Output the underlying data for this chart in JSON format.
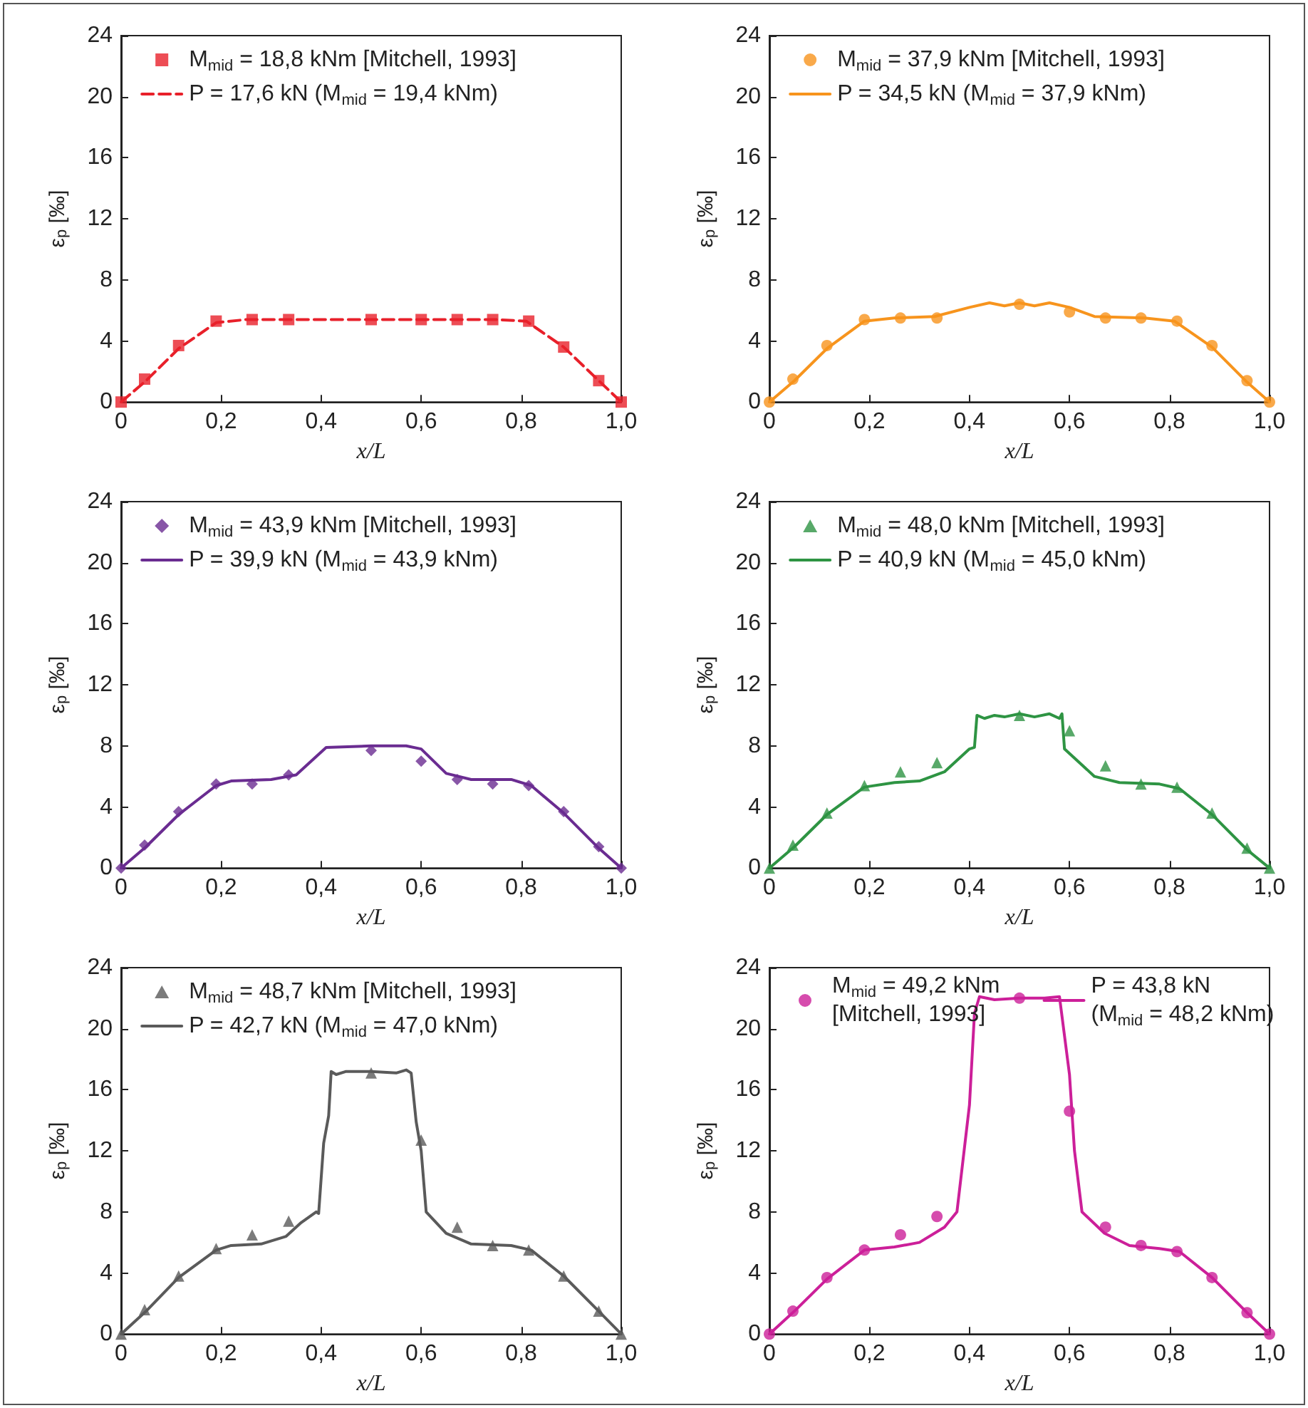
{
  "chart_data": [
    {
      "type": "line",
      "xlabel": "x/L",
      "ylabel": "ε$_{p}$ [‰]",
      "xlim": [
        0,
        1
      ],
      "xticks": [
        {
          "value": 0,
          "label": "0"
        },
        {
          "value": 0.2,
          "label": "0,2"
        },
        {
          "value": 0.4,
          "label": "0,4"
        },
        {
          "value": 0.6,
          "label": "0,6"
        },
        {
          "value": 0.8,
          "label": "0,8"
        },
        {
          "value": 1,
          "label": "1,0"
        }
      ],
      "ylim": [
        0,
        24
      ],
      "yticks": [
        0,
        4,
        8,
        12,
        16,
        20,
        24
      ],
      "grid": false,
      "legend": "top",
      "series": [
        {
          "name": "M$_{mid}$ = 18,8 kNm [Mitchell, 1993]",
          "color": "#e8202a",
          "type": "scatter",
          "marker": "square",
          "x": [
            0,
            0.047,
            0.115,
            0.19,
            0.262,
            0.335,
            0.5,
            0.6,
            0.672,
            0.743,
            0.815,
            0.885,
            0.955,
            1
          ],
          "values": [
            0,
            1.5,
            3.7,
            5.3,
            5.4,
            5.4,
            5.4,
            5.4,
            5.4,
            5.4,
            5.3,
            3.6,
            1.4,
            0
          ]
        },
        {
          "name": "P = 17,6 kN (M$_{mid}$ = 19,4 kNm)",
          "color": "#e8202a",
          "type": "line",
          "marker": "none",
          "line_style": "dashed",
          "x": [
            0,
            0.05,
            0.115,
            0.19,
            0.25,
            0.5,
            0.75,
            0.81,
            0.885,
            0.955,
            1
          ],
          "values": [
            0,
            1.4,
            3.5,
            5.2,
            5.4,
            5.4,
            5.4,
            5.3,
            3.6,
            1.4,
            0
          ]
        }
      ]
    },
    {
      "type": "line",
      "xlabel": "x/L",
      "ylabel": "ε$_{p}$ [‰]",
      "xlim": [
        0,
        1
      ],
      "xticks": [
        {
          "value": 0,
          "label": "0"
        },
        {
          "value": 0.2,
          "label": "0,2"
        },
        {
          "value": 0.4,
          "label": "0,4"
        },
        {
          "value": 0.6,
          "label": "0,6"
        },
        {
          "value": 0.8,
          "label": "0,8"
        },
        {
          "value": 1,
          "label": "1,0"
        }
      ],
      "ylim": [
        0,
        24
      ],
      "yticks": [
        0,
        4,
        8,
        12,
        16,
        20,
        24
      ],
      "grid": false,
      "legend": "top",
      "series": [
        {
          "name": "M$_{mid}$ = 37,9 kNm [Mitchell, 1993]",
          "color": "#f7941d",
          "type": "scatter",
          "marker": "circle",
          "x": [
            0,
            0.047,
            0.115,
            0.19,
            0.262,
            0.335,
            0.5,
            0.6,
            0.672,
            0.743,
            0.815,
            0.885,
            0.955,
            1
          ],
          "values": [
            0,
            1.5,
            3.7,
            5.4,
            5.5,
            5.5,
            6.4,
            5.9,
            5.5,
            5.5,
            5.3,
            3.7,
            1.4,
            0
          ]
        },
        {
          "name": "P = 34,5 kN (M$_{mid}$ = 37,9 kNm)",
          "color": "#f7941d",
          "type": "line",
          "marker": "none",
          "line_style": "solid",
          "x": [
            0,
            0.05,
            0.115,
            0.19,
            0.25,
            0.33,
            0.4,
            0.44,
            0.47,
            0.5,
            0.53,
            0.56,
            0.6,
            0.65,
            0.75,
            0.81,
            0.885,
            0.955,
            1
          ],
          "values": [
            0,
            1.4,
            3.5,
            5.3,
            5.5,
            5.6,
            6.2,
            6.5,
            6.3,
            6.5,
            6.3,
            6.5,
            6.2,
            5.6,
            5.5,
            5.3,
            3.6,
            1.3,
            0
          ]
        }
      ]
    },
    {
      "type": "line",
      "xlabel": "x/L",
      "ylabel": "ε$_{p}$ [‰]",
      "xlim": [
        0,
        1
      ],
      "xticks": [
        {
          "value": 0,
          "label": "0"
        },
        {
          "value": 0.2,
          "label": "0,2"
        },
        {
          "value": 0.4,
          "label": "0,4"
        },
        {
          "value": 0.6,
          "label": "0,6"
        },
        {
          "value": 0.8,
          "label": "0,8"
        },
        {
          "value": 1,
          "label": "1,0"
        }
      ],
      "ylim": [
        0,
        24
      ],
      "yticks": [
        0,
        4,
        8,
        12,
        16,
        20,
        24
      ],
      "grid": false,
      "legend": "top",
      "series": [
        {
          "name": "M$_{mid}$ = 43,9 kNm [Mitchell, 1993]",
          "color": "#6a2c91",
          "type": "scatter",
          "marker": "diamond",
          "x": [
            0,
            0.047,
            0.115,
            0.19,
            0.262,
            0.335,
            0.5,
            0.6,
            0.672,
            0.743,
            0.815,
            0.885,
            0.955,
            1
          ],
          "values": [
            0,
            1.5,
            3.7,
            5.5,
            5.5,
            6.1,
            7.7,
            7.0,
            5.8,
            5.5,
            5.4,
            3.7,
            1.4,
            0
          ]
        },
        {
          "name": "P = 39,9 kN (M$_{mid}$ = 43,9 kNm)",
          "color": "#6a2c91",
          "type": "line",
          "marker": "none",
          "line_style": "solid",
          "x": [
            0,
            0.05,
            0.115,
            0.19,
            0.22,
            0.3,
            0.35,
            0.41,
            0.5,
            0.57,
            0.6,
            0.65,
            0.7,
            0.78,
            0.82,
            0.885,
            0.955,
            1
          ],
          "values": [
            0,
            1.4,
            3.5,
            5.4,
            5.7,
            5.8,
            6.1,
            7.9,
            8.0,
            8.0,
            7.8,
            6.2,
            5.8,
            5.8,
            5.4,
            3.6,
            1.3,
            0
          ]
        }
      ]
    },
    {
      "type": "line",
      "xlabel": "x/L",
      "ylabel": "ε$_{p}$ [‰]",
      "xlim": [
        0,
        1
      ],
      "xticks": [
        {
          "value": 0,
          "label": "0"
        },
        {
          "value": 0.2,
          "label": "0,2"
        },
        {
          "value": 0.4,
          "label": "0,4"
        },
        {
          "value": 0.6,
          "label": "0,6"
        },
        {
          "value": 0.8,
          "label": "0,8"
        },
        {
          "value": 1,
          "label": "1,0"
        }
      ],
      "ylim": [
        0,
        24
      ],
      "yticks": [
        0,
        4,
        8,
        12,
        16,
        20,
        24
      ],
      "grid": false,
      "legend": "top",
      "series": [
        {
          "name": "M$_{mid}$ = 48,0 kNm [Mitchell, 1993]",
          "color": "#2e9443",
          "type": "scatter",
          "marker": "triangle",
          "x": [
            0,
            0.047,
            0.115,
            0.19,
            0.262,
            0.335,
            0.5,
            0.6,
            0.672,
            0.743,
            0.815,
            0.885,
            0.955,
            1
          ],
          "values": [
            0,
            1.5,
            3.6,
            5.4,
            6.3,
            6.9,
            10.0,
            9.0,
            6.7,
            5.5,
            5.3,
            3.6,
            1.3,
            0
          ]
        },
        {
          "name": "P = 40,9 kN (M$_{mid}$ = 45,0 kNm)",
          "color": "#2e9443",
          "type": "line",
          "marker": "none",
          "line_style": "solid",
          "x": [
            0,
            0.05,
            0.115,
            0.19,
            0.25,
            0.3,
            0.35,
            0.4,
            0.41,
            0.415,
            0.43,
            0.45,
            0.47,
            0.5,
            0.53,
            0.56,
            0.58,
            0.585,
            0.59,
            0.65,
            0.7,
            0.78,
            0.82,
            0.885,
            0.955,
            1
          ],
          "values": [
            0,
            1.4,
            3.5,
            5.3,
            5.6,
            5.7,
            6.3,
            7.8,
            7.9,
            10.0,
            9.8,
            10.0,
            9.9,
            10.1,
            9.9,
            10.1,
            9.8,
            10.1,
            7.8,
            6.0,
            5.6,
            5.5,
            5.2,
            3.5,
            1.2,
            0
          ]
        }
      ]
    },
    {
      "type": "line",
      "xlabel": "x/L",
      "ylabel": "ε$_{p}$ [‰]",
      "xlim": [
        0,
        1
      ],
      "xticks": [
        {
          "value": 0,
          "label": "0"
        },
        {
          "value": 0.2,
          "label": "0,2"
        },
        {
          "value": 0.4,
          "label": "0,4"
        },
        {
          "value": 0.6,
          "label": "0,6"
        },
        {
          "value": 0.8,
          "label": "0,8"
        },
        {
          "value": 1,
          "label": "1,0"
        }
      ],
      "ylim": [
        0,
        24
      ],
      "yticks": [
        0,
        4,
        8,
        12,
        16,
        20,
        24
      ],
      "grid": false,
      "legend": "top",
      "series": [
        {
          "name": "M$_{mid}$ = 48,7 kNm [Mitchell, 1993]",
          "color": "#5a5a5a",
          "type": "scatter",
          "marker": "triangle",
          "x": [
            0,
            0.047,
            0.115,
            0.19,
            0.262,
            0.335,
            0.5,
            0.6,
            0.672,
            0.743,
            0.815,
            0.885,
            0.955,
            1
          ],
          "values": [
            0,
            1.6,
            3.8,
            5.6,
            6.5,
            7.4,
            17.1,
            12.7,
            7.0,
            5.8,
            5.5,
            3.8,
            1.5,
            0
          ]
        },
        {
          "name": "P = 42,7 kN (M$_{mid}$ = 47,0 kNm)",
          "color": "#5a5a5a",
          "type": "line",
          "marker": "none",
          "line_style": "solid",
          "x": [
            0,
            0.05,
            0.115,
            0.19,
            0.22,
            0.28,
            0.33,
            0.36,
            0.39,
            0.395,
            0.405,
            0.415,
            0.42,
            0.43,
            0.45,
            0.5,
            0.55,
            0.57,
            0.58,
            0.59,
            0.6,
            0.61,
            0.65,
            0.7,
            0.78,
            0.82,
            0.885,
            0.955,
            1
          ],
          "values": [
            0,
            1.5,
            3.7,
            5.5,
            5.8,
            5.9,
            6.4,
            7.3,
            8.0,
            7.9,
            12.5,
            14.3,
            17.2,
            17.0,
            17.2,
            17.2,
            17.1,
            17.3,
            17.1,
            13.9,
            12.0,
            8.0,
            6.6,
            5.9,
            5.8,
            5.5,
            3.8,
            1.5,
            0
          ]
        }
      ]
    },
    {
      "type": "line",
      "xlabel": "x/L",
      "ylabel": "ε$_{p}$ [‰]",
      "xlim": [
        0,
        1
      ],
      "xticks": [
        {
          "value": 0,
          "label": "0"
        },
        {
          "value": 0.2,
          "label": "0,2"
        },
        {
          "value": 0.4,
          "label": "0,4"
        },
        {
          "value": 0.6,
          "label": "0,6"
        },
        {
          "value": 0.8,
          "label": "0,8"
        },
        {
          "value": 1,
          "label": "1,0"
        }
      ],
      "ylim": [
        0,
        24
      ],
      "yticks": [
        0,
        4,
        8,
        12,
        16,
        20,
        24
      ],
      "grid": false,
      "legend": "top",
      "series": [
        {
          "name": "M$_{mid}$ = 49,2 kNm\n[Mitchell, 1993]",
          "color": "#cc1f99",
          "type": "scatter",
          "marker": "circle",
          "x": [
            0,
            0.047,
            0.115,
            0.19,
            0.262,
            0.335,
            0.5,
            0.6,
            0.672,
            0.743,
            0.815,
            0.885,
            0.955,
            1
          ],
          "values": [
            0,
            1.5,
            3.7,
            5.5,
            6.5,
            7.7,
            22.0,
            14.6,
            7.0,
            5.8,
            5.4,
            3.7,
            1.4,
            0
          ]
        },
        {
          "name": "P = 43,8 kN\n(M$_{mid}$ = 48,2 kNm)",
          "color": "#cc1f99",
          "type": "line",
          "marker": "none",
          "line_style": "solid",
          "x": [
            0,
            0.05,
            0.115,
            0.19,
            0.25,
            0.3,
            0.35,
            0.375,
            0.4,
            0.41,
            0.42,
            0.45,
            0.5,
            0.55,
            0.58,
            0.6,
            0.61,
            0.625,
            0.67,
            0.72,
            0.78,
            0.82,
            0.885,
            0.955,
            1
          ],
          "values": [
            0,
            1.5,
            3.6,
            5.5,
            5.7,
            6.0,
            7.0,
            8.0,
            15,
            21,
            22.1,
            21.9,
            22.0,
            22.0,
            22.1,
            17.0,
            12,
            8.0,
            6.6,
            5.8,
            5.6,
            5.4,
            3.7,
            1.4,
            0
          ]
        }
      ]
    }
  ]
}
